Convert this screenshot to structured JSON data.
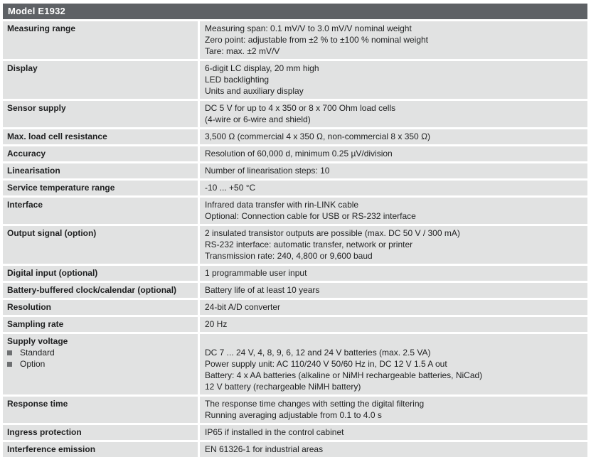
{
  "header": {
    "title": "Model E1932"
  },
  "colors": {
    "header_bg": "#5e6165",
    "header_fg": "#ffffff",
    "row_bg": "#e1e2e2",
    "text": "#1f2021",
    "bullet": "#6e7072"
  },
  "table": {
    "rows": [
      {
        "label": "Measuring range",
        "lines": [
          "Measuring span: 0.1 mV/V to 3.0 mV/V nominal weight",
          "Zero point: adjustable from ±2 % to ±100 % nominal weight",
          "Tare: max. ±2 mV/V"
        ]
      },
      {
        "label": "Display",
        "lines": [
          "6-digit LC display, 20 mm high",
          "LED backlighting",
          "Units and auxiliary display"
        ]
      },
      {
        "label": "Sensor supply",
        "lines": [
          "DC 5 V for up to 4 x 350 or 8 x 700 Ohm load cells",
          "(4-wire or 6-wire and shield)"
        ]
      },
      {
        "label": "Max. load cell resistance",
        "lines": [
          "3,500 Ω (commercial 4 x 350 Ω, non-commercial 8 x 350 Ω)"
        ]
      },
      {
        "label": "Accuracy",
        "lines": [
          "Resolution of 60,000 d, minimum 0.25 µV/division"
        ]
      },
      {
        "label": "Linearisation",
        "lines": [
          "Number of linearisation steps: 10"
        ]
      },
      {
        "label": "Service temperature range",
        "lines": [
          "-10 ... +50 °C"
        ]
      },
      {
        "label": "Interface",
        "lines": [
          "Infrared data transfer with rin-LINK cable",
          "Optional: Connection cable for USB or RS-232 interface"
        ]
      },
      {
        "label": "Output signal (option)",
        "lines": [
          "2 insulated transistor outputs are possible (max. DC 50 V / 300 mA)",
          "RS-232 interface: automatic transfer, network or printer",
          "Transmission rate: 240, 4,800 or 9,600 baud"
        ]
      },
      {
        "label": "Digital input (optional)",
        "lines": [
          "1 programmable user input"
        ]
      },
      {
        "label": "Battery-buffered clock/calendar (optional)",
        "lines": [
          "Battery life of at least 10 years"
        ]
      },
      {
        "label": "Resolution",
        "lines": [
          "24-bit A/D converter"
        ]
      },
      {
        "label": "Sampling rate",
        "lines": [
          "20 Hz"
        ]
      },
      {
        "label": "Supply voltage",
        "label_items": [
          "Standard",
          "Option"
        ],
        "value_offset_lines": 1,
        "lines": [
          "DC 7 ... 24 V, 4, 8, 9, 6, 12 and 24 V batteries (max. 2.5 VA)",
          "Power supply unit: AC 110/240 V 50/60 Hz in, DC 12 V 1.5 A out",
          "Battery: 4 x AA batteries (alkaline or NiMH rechargeable batteries, NiCad)",
          "12 V battery (rechargeable NiMH battery)"
        ]
      },
      {
        "label": "Response time",
        "lines": [
          "The response time changes with setting the digital filtering",
          "Running averaging adjustable from 0.1 to 4.0 s"
        ]
      },
      {
        "label": "Ingress protection",
        "lines": [
          "IP65 if installed in the control cabinet"
        ]
      },
      {
        "label": "Interference emission",
        "lines": [
          "EN 61326-1 for industrial areas"
        ]
      }
    ]
  }
}
